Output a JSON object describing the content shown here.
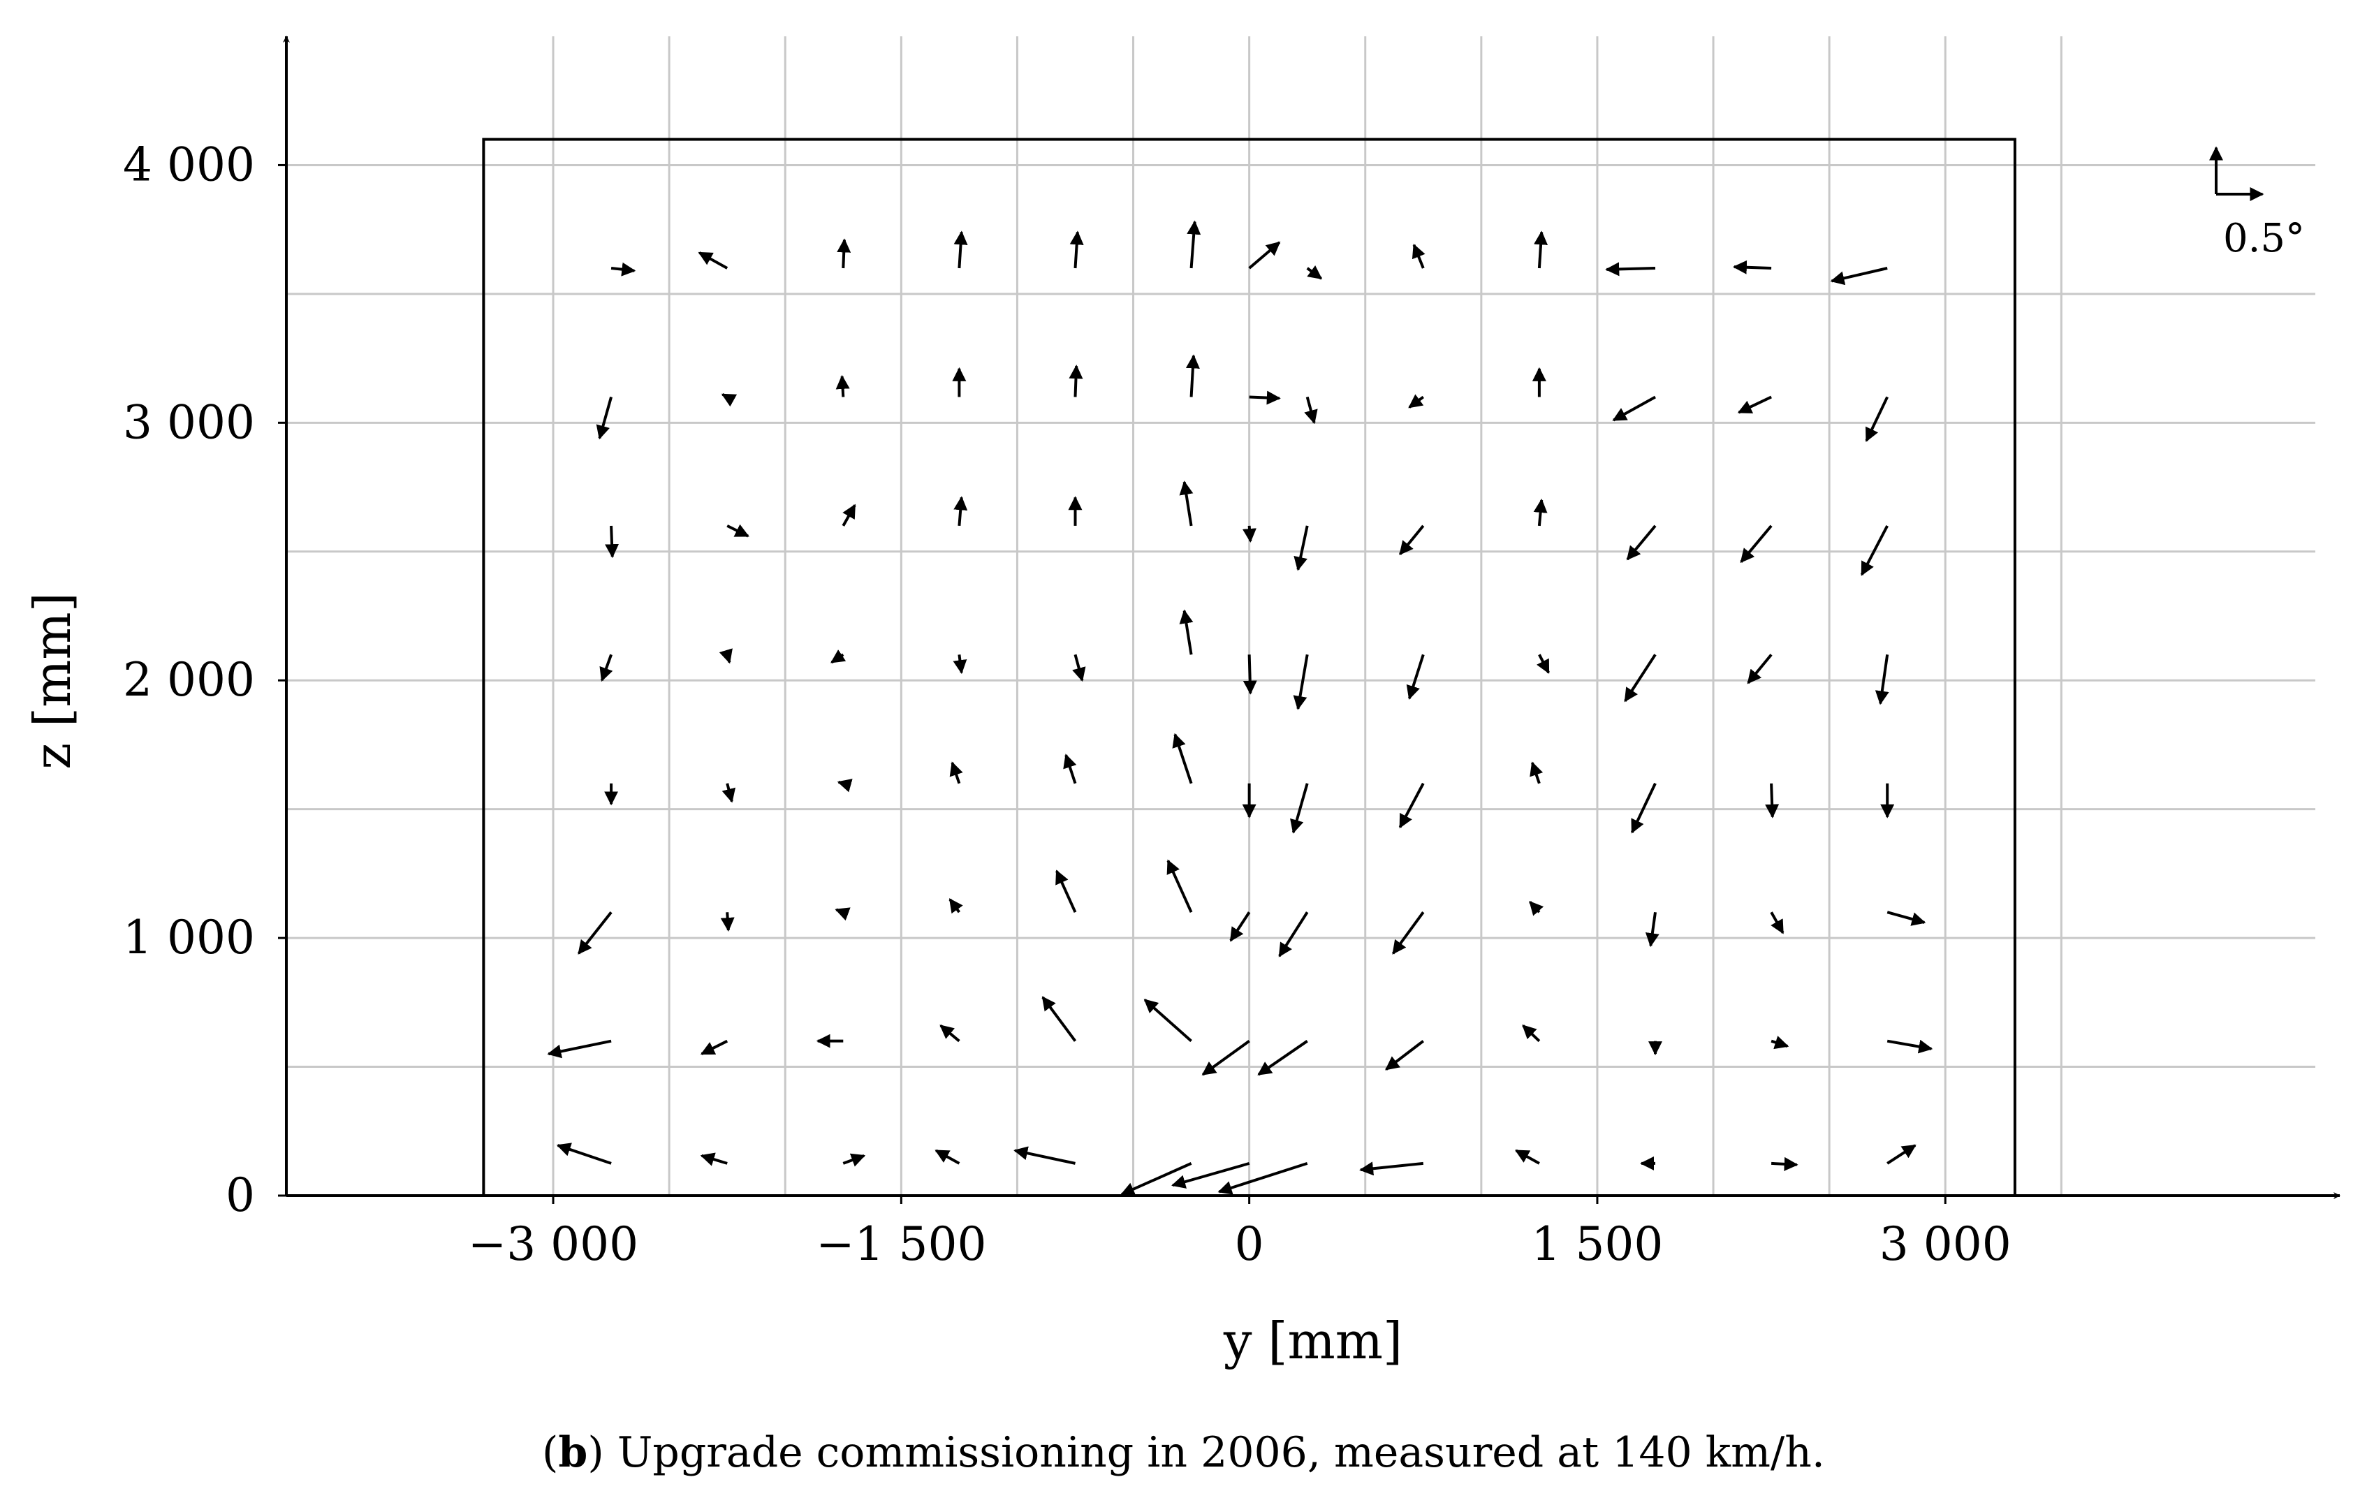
{
  "chart_data": {
    "type": "quiver",
    "xlabel": "y [mm]",
    "ylabel": "z [mm]",
    "xlim": [
      -4150,
      4700
    ],
    "ylim": [
      0,
      4500
    ],
    "xticks": [
      -3000,
      -1500,
      0,
      1500,
      3000
    ],
    "xtick_labels": [
      "−3 000",
      "−1 500",
      "0",
      "1 500",
      "3 000"
    ],
    "yticks": [
      0,
      1000,
      2000,
      3000,
      4000
    ],
    "ytick_labels": [
      "0",
      "1 000",
      "2 000",
      "3 000",
      "4 000"
    ],
    "grid": true,
    "grid_x": [
      -3000,
      -2500,
      -2000,
      -1500,
      -1000,
      -500,
      0,
      500,
      1000,
      1500,
      2000,
      2500,
      3000,
      3500
    ],
    "grid_y": [
      500,
      1000,
      1500,
      2000,
      2500,
      3000,
      3500,
      4000
    ],
    "outline_box": {
      "y_min": -3300,
      "y_max": 3300,
      "z_min": 0,
      "z_max": 4100
    },
    "scale_arrow": {
      "label": "0.5°",
      "value_deg": 0.5,
      "length_mm": 200
    },
    "vectors": [
      {
        "y": -2750,
        "z": 3600,
        "dy": 100,
        "dz": -10
      },
      {
        "y": -2250,
        "z": 3600,
        "dy": -120,
        "dz": 60
      },
      {
        "y": -1750,
        "z": 3600,
        "dy": 5,
        "dz": 110
      },
      {
        "y": -1250,
        "z": 3600,
        "dy": 10,
        "dz": 140
      },
      {
        "y": -750,
        "z": 3600,
        "dy": 10,
        "dz": 140
      },
      {
        "y": -250,
        "z": 3600,
        "dy": 15,
        "dz": 180
      },
      {
        "y": 0,
        "z": 3600,
        "dy": 130,
        "dz": 100
      },
      {
        "y": 250,
        "z": 3600,
        "dy": 60,
        "dz": -40
      },
      {
        "y": 750,
        "z": 3600,
        "dy": -40,
        "dz": 90
      },
      {
        "y": 1250,
        "z": 3600,
        "dy": 10,
        "dz": 140
      },
      {
        "y": 1750,
        "z": 3600,
        "dy": -210,
        "dz": -5
      },
      {
        "y": 2250,
        "z": 3600,
        "dy": -160,
        "dz": 5
      },
      {
        "y": 2750,
        "z": 3600,
        "dy": -240,
        "dz": -50
      },
      {
        "y": -2750,
        "z": 3100,
        "dy": -50,
        "dz": -160
      },
      {
        "y": -2250,
        "z": 3100,
        "dy": -20,
        "dz": 10
      },
      {
        "y": -1750,
        "z": 3100,
        "dy": -5,
        "dz": 80
      },
      {
        "y": -1250,
        "z": 3100,
        "dy": 0,
        "dz": 110
      },
      {
        "y": -750,
        "z": 3100,
        "dy": 5,
        "dz": 120
      },
      {
        "y": -250,
        "z": 3100,
        "dy": 10,
        "dz": 160
      },
      {
        "y": 0,
        "z": 3100,
        "dy": 130,
        "dz": -5
      },
      {
        "y": 250,
        "z": 3100,
        "dy": 30,
        "dz": -100
      },
      {
        "y": 750,
        "z": 3100,
        "dy": -60,
        "dz": -40
      },
      {
        "y": 1250,
        "z": 3100,
        "dy": 0,
        "dz": 110
      },
      {
        "y": 1750,
        "z": 3100,
        "dy": -180,
        "dz": -90
      },
      {
        "y": 2250,
        "z": 3100,
        "dy": -140,
        "dz": -60
      },
      {
        "y": 2750,
        "z": 3100,
        "dy": -90,
        "dz": -170
      },
      {
        "y": -2750,
        "z": 2600,
        "dy": 5,
        "dz": -120
      },
      {
        "y": -2250,
        "z": 2600,
        "dy": 90,
        "dz": -40
      },
      {
        "y": -1750,
        "z": 2600,
        "dy": 50,
        "dz": 80
      },
      {
        "y": -1250,
        "z": 2600,
        "dy": 10,
        "dz": 110
      },
      {
        "y": -750,
        "z": 2600,
        "dy": 0,
        "dz": 110
      },
      {
        "y": -250,
        "z": 2600,
        "dy": -30,
        "dz": 170
      },
      {
        "y": 0,
        "z": 2600,
        "dy": 5,
        "dz": -60
      },
      {
        "y": 250,
        "z": 2600,
        "dy": -40,
        "dz": -170
      },
      {
        "y": 750,
        "z": 2600,
        "dy": -100,
        "dz": -110
      },
      {
        "y": 1250,
        "z": 2600,
        "dy": 10,
        "dz": 100
      },
      {
        "y": 1750,
        "z": 2600,
        "dy": -120,
        "dz": -130
      },
      {
        "y": 2250,
        "z": 2600,
        "dy": -130,
        "dz": -140
      },
      {
        "y": 2750,
        "z": 2600,
        "dy": -110,
        "dz": -190
      },
      {
        "y": -2750,
        "z": 2100,
        "dy": -40,
        "dz": -100
      },
      {
        "y": -2250,
        "z": 2100,
        "dy": 10,
        "dz": -30
      },
      {
        "y": -1750,
        "z": 2100,
        "dy": -50,
        "dz": -30
      },
      {
        "y": -1250,
        "z": 2100,
        "dy": 10,
        "dz": -70
      },
      {
        "y": -750,
        "z": 2100,
        "dy": 30,
        "dz": -100
      },
      {
        "y": -250,
        "z": 2100,
        "dy": -30,
        "dz": 170
      },
      {
        "y": 0,
        "z": 2100,
        "dy": 5,
        "dz": -150
      },
      {
        "y": 250,
        "z": 2100,
        "dy": -40,
        "dz": -210
      },
      {
        "y": 750,
        "z": 2100,
        "dy": -60,
        "dz": -170
      },
      {
        "y": 1250,
        "z": 2100,
        "dy": 40,
        "dz": -70
      },
      {
        "y": 1750,
        "z": 2100,
        "dy": -130,
        "dz": -180
      },
      {
        "y": 2250,
        "z": 2100,
        "dy": -100,
        "dz": -110
      },
      {
        "y": 2750,
        "z": 2100,
        "dy": -30,
        "dz": -190
      },
      {
        "y": -2750,
        "z": 1600,
        "dy": 0,
        "dz": -80
      },
      {
        "y": -2250,
        "z": 1600,
        "dy": 20,
        "dz": -70
      },
      {
        "y": -1750,
        "z": 1600,
        "dy": -20,
        "dz": 5
      },
      {
        "y": -1250,
        "z": 1600,
        "dy": -30,
        "dz": 80
      },
      {
        "y": -750,
        "z": 1600,
        "dy": -40,
        "dz": 110
      },
      {
        "y": -250,
        "z": 1600,
        "dy": -70,
        "dz": 190
      },
      {
        "y": 0,
        "z": 1600,
        "dy": 0,
        "dz": -130
      },
      {
        "y": 250,
        "z": 1600,
        "dy": -60,
        "dz": -190
      },
      {
        "y": 750,
        "z": 1600,
        "dy": -100,
        "dz": -170
      },
      {
        "y": 1250,
        "z": 1600,
        "dy": -30,
        "dz": 80
      },
      {
        "y": 1750,
        "z": 1600,
        "dy": -100,
        "dz": -190
      },
      {
        "y": 2250,
        "z": 1600,
        "dy": 5,
        "dz": -130
      },
      {
        "y": 2750,
        "z": 1600,
        "dy": 0,
        "dz": -130
      },
      {
        "y": -2750,
        "z": 1100,
        "dy": -140,
        "dz": -160
      },
      {
        "y": -2250,
        "z": 1100,
        "dy": 5,
        "dz": -70
      },
      {
        "y": -1750,
        "z": 1100,
        "dy": -30,
        "dz": 10
      },
      {
        "y": -1250,
        "z": 1100,
        "dy": -40,
        "dz": 50
      },
      {
        "y": -750,
        "z": 1100,
        "dy": -80,
        "dz": 160
      },
      {
        "y": -250,
        "z": 1100,
        "dy": -100,
        "dz": 200
      },
      {
        "y": 0,
        "z": 1100,
        "dy": -80,
        "dz": -110
      },
      {
        "y": 250,
        "z": 1100,
        "dy": -120,
        "dz": -170
      },
      {
        "y": 750,
        "z": 1100,
        "dy": -130,
        "dz": -160
      },
      {
        "y": 1250,
        "z": 1100,
        "dy": -40,
        "dz": 40
      },
      {
        "y": 1750,
        "z": 1100,
        "dy": -20,
        "dz": -130
      },
      {
        "y": 2250,
        "z": 1100,
        "dy": 50,
        "dz": -80
      },
      {
        "y": 2750,
        "z": 1100,
        "dy": 160,
        "dz": -40
      },
      {
        "y": -2750,
        "z": 600,
        "dy": -270,
        "dz": -50
      },
      {
        "y": -2250,
        "z": 600,
        "dy": -110,
        "dz": -50
      },
      {
        "y": -1750,
        "z": 600,
        "dy": -110,
        "dz": 0
      },
      {
        "y": -1250,
        "z": 600,
        "dy": -80,
        "dz": 60
      },
      {
        "y": -750,
        "z": 600,
        "dy": -140,
        "dz": 170
      },
      {
        "y": -250,
        "z": 600,
        "dy": -200,
        "dz": 160
      },
      {
        "y": 0,
        "z": 600,
        "dy": -200,
        "dz": -130
      },
      {
        "y": 250,
        "z": 600,
        "dy": -210,
        "dz": -130
      },
      {
        "y": 750,
        "z": 600,
        "dy": -160,
        "dz": -110
      },
      {
        "y": 1250,
        "z": 600,
        "dy": -70,
        "dz": 60
      },
      {
        "y": 1750,
        "z": 600,
        "dy": 0,
        "dz": -50
      },
      {
        "y": 2250,
        "z": 600,
        "dy": 70,
        "dz": -20
      },
      {
        "y": 2750,
        "z": 600,
        "dy": 190,
        "dz": -30
      },
      {
        "y": -2750,
        "z": 125,
        "dy": -230,
        "dz": 70
      },
      {
        "y": -2250,
        "z": 125,
        "dy": -110,
        "dz": 30
      },
      {
        "y": -1750,
        "z": 125,
        "dy": 90,
        "dz": 30
      },
      {
        "y": -1250,
        "z": 125,
        "dy": -100,
        "dz": 50
      },
      {
        "y": -750,
        "z": 125,
        "dy": -260,
        "dz": 50
      },
      {
        "y": -250,
        "z": 125,
        "dy": -300,
        "dz": -120
      },
      {
        "y": 0,
        "z": 125,
        "dy": -330,
        "dz": -85
      },
      {
        "y": 250,
        "z": 125,
        "dy": -380,
        "dz": -110
      },
      {
        "y": 750,
        "z": 125,
        "dy": -270,
        "dz": -25
      },
      {
        "y": 1250,
        "z": 125,
        "dy": -100,
        "dz": 50
      },
      {
        "y": 1750,
        "z": 125,
        "dy": -60,
        "dz": 0
      },
      {
        "y": 2250,
        "z": 125,
        "dy": 110,
        "dz": -5
      },
      {
        "y": 2750,
        "z": 125,
        "dy": 120,
        "dz": 70
      }
    ]
  },
  "caption": {
    "label": "b",
    "text": ") Upgrade commissioning in 2006, measured at 140 km/h."
  }
}
